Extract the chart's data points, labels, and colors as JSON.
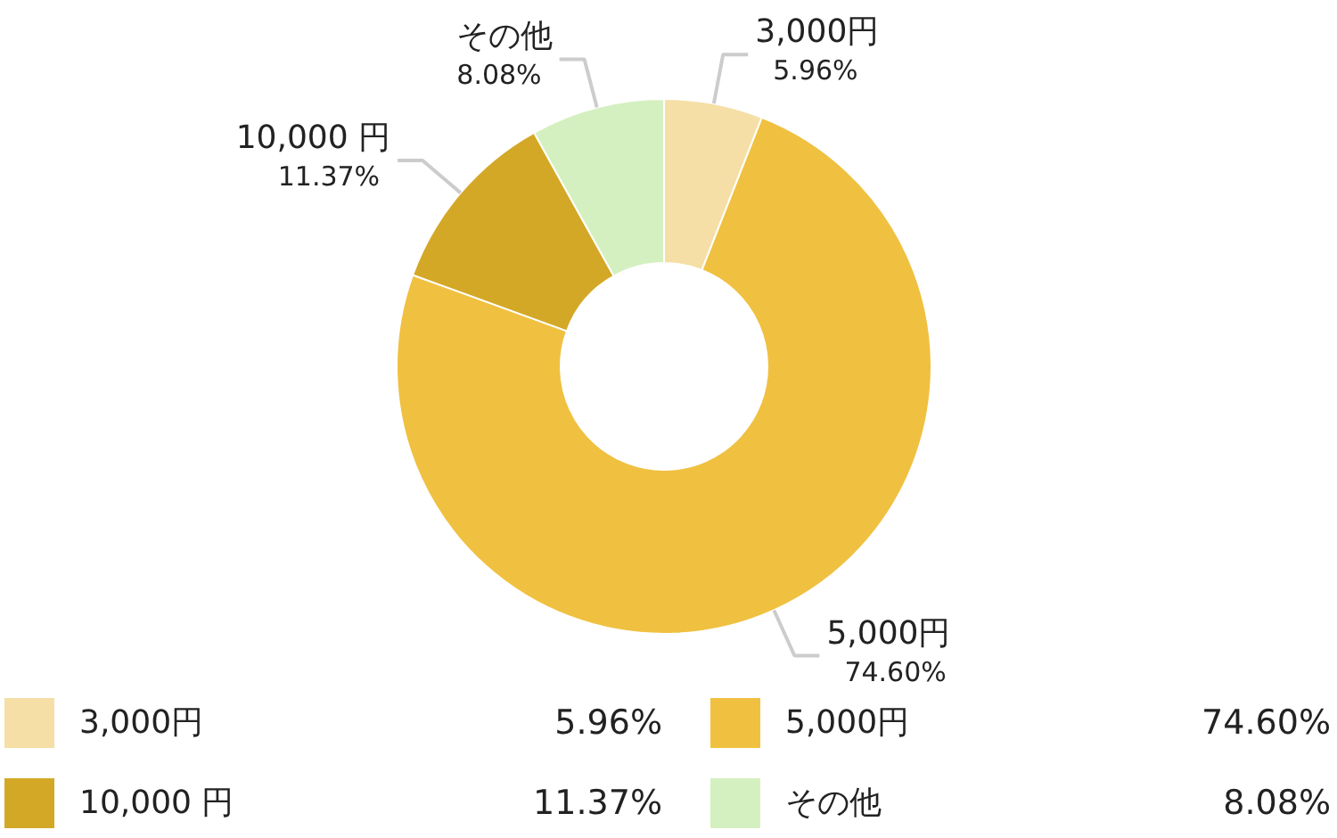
{
  "chart_data": {
    "type": "donut",
    "categories": [
      "3,000円",
      "5,000円",
      "10,000 円",
      "その他"
    ],
    "values": [
      5.96,
      74.6,
      11.37,
      8.08
    ],
    "value_labels": [
      "5.96%",
      "74.60%",
      "11.37%",
      "8.08%"
    ],
    "colors": [
      "#f5dfa6",
      "#f0c040",
      "#d4a827",
      "#d5f0c0"
    ],
    "legend": "bottom"
  }
}
